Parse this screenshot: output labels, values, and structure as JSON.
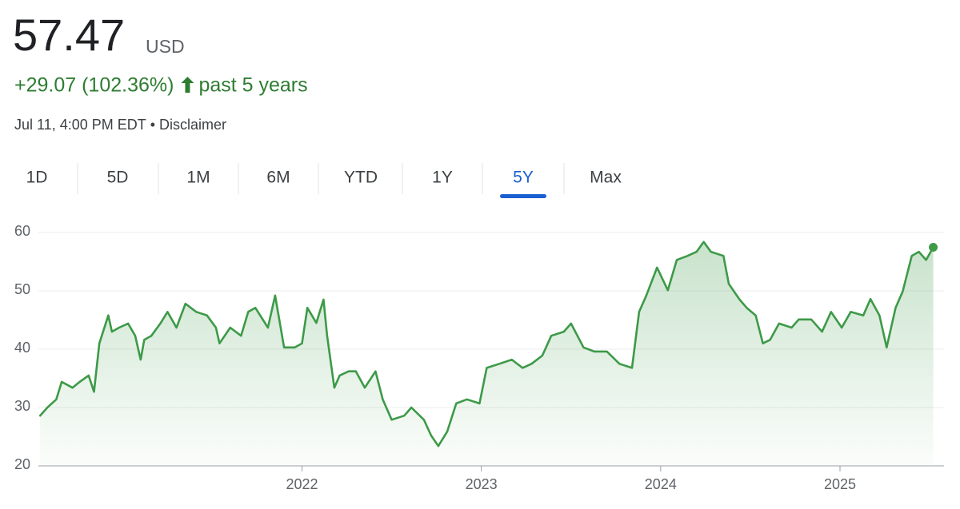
{
  "header": {
    "price": "57.47",
    "currency": "USD",
    "change": "+29.07 (102.36%)",
    "period": "past 5 years",
    "timestamp": "Jul 11, 4:00 PM EDT",
    "disclaimer": "Disclaimer"
  },
  "tabs": [
    {
      "label": "1D",
      "selected": false
    },
    {
      "label": "5D",
      "selected": false
    },
    {
      "label": "1M",
      "selected": false
    },
    {
      "label": "6M",
      "selected": false
    },
    {
      "label": "YTD",
      "selected": false
    },
    {
      "label": "1Y",
      "selected": false
    },
    {
      "label": "5Y",
      "selected": true
    },
    {
      "label": "Max",
      "selected": false
    }
  ],
  "chart_data": {
    "type": "line",
    "color": "#3d9a48",
    "grid": true,
    "end_marker": true,
    "xlim": [
      2020.53,
      2025.58
    ],
    "xticks": [
      2022,
      2023,
      2024,
      2025
    ],
    "ylim": [
      20,
      60
    ],
    "yticks": [
      20,
      30,
      40,
      50,
      60
    ],
    "x": [
      2020.54,
      2020.58,
      2020.63,
      2020.66,
      2020.72,
      2020.76,
      2020.81,
      2020.84,
      2020.87,
      2020.92,
      2020.94,
      2020.98,
      2021.03,
      2021.07,
      2021.1,
      2021.12,
      2021.16,
      2021.21,
      2021.25,
      2021.3,
      2021.35,
      2021.41,
      2021.47,
      2021.52,
      2021.54,
      2021.6,
      2021.66,
      2021.7,
      2021.74,
      2021.81,
      2021.85,
      2021.9,
      2021.96,
      2022.0,
      2022.03,
      2022.08,
      2022.12,
      2022.14,
      2022.18,
      2022.21,
      2022.26,
      2022.3,
      2022.35,
      2022.41,
      2022.45,
      2022.5,
      2022.57,
      2022.61,
      2022.68,
      2022.72,
      2022.76,
      2022.81,
      2022.86,
      2022.92,
      2022.99,
      2023.03,
      2023.1,
      2023.17,
      2023.23,
      2023.28,
      2023.34,
      2023.39,
      2023.46,
      2023.5,
      2023.57,
      2023.63,
      2023.7,
      2023.77,
      2023.84,
      2023.88,
      2023.92,
      2023.98,
      2024.04,
      2024.09,
      2024.15,
      2024.2,
      2024.24,
      2024.28,
      2024.35,
      2024.38,
      2024.44,
      2024.48,
      2024.53,
      2024.57,
      2024.61,
      2024.66,
      2024.73,
      2024.77,
      2024.84,
      2024.9,
      2024.95,
      2025.01,
      2025.06,
      2025.13,
      2025.17,
      2025.22,
      2025.26,
      2025.31,
      2025.35,
      2025.4,
      2025.44,
      2025.48,
      2025.52
    ],
    "values": [
      28.6,
      30.0,
      31.4,
      34.4,
      33.4,
      34.4,
      35.5,
      32.7,
      41.0,
      45.8,
      43.0,
      43.7,
      44.4,
      42.3,
      38.2,
      41.6,
      42.3,
      44.4,
      46.4,
      43.7,
      47.8,
      46.4,
      45.8,
      43.7,
      41.0,
      43.7,
      42.3,
      46.4,
      47.1,
      43.7,
      49.2,
      40.3,
      40.3,
      41.0,
      47.1,
      44.5,
      48.5,
      42.3,
      33.4,
      35.5,
      36.2,
      36.2,
      33.4,
      36.2,
      31.4,
      27.9,
      28.6,
      30.0,
      27.9,
      25.2,
      23.4,
      25.9,
      30.7,
      31.4,
      30.7,
      36.8,
      37.5,
      38.2,
      36.8,
      37.5,
      38.9,
      42.3,
      43.0,
      44.4,
      40.3,
      39.6,
      39.6,
      37.5,
      36.8,
      46.4,
      49.2,
      54.0,
      50.1,
      55.3,
      56.0,
      56.7,
      58.4,
      56.7,
      56.0,
      51.2,
      48.5,
      47.1,
      45.8,
      41.0,
      41.6,
      44.4,
      43.7,
      45.1,
      45.1,
      43.0,
      46.4,
      43.7,
      46.4,
      45.8,
      48.6,
      45.8,
      40.3,
      47.1,
      49.9,
      56.0,
      56.7,
      55.3,
      57.47
    ]
  }
}
